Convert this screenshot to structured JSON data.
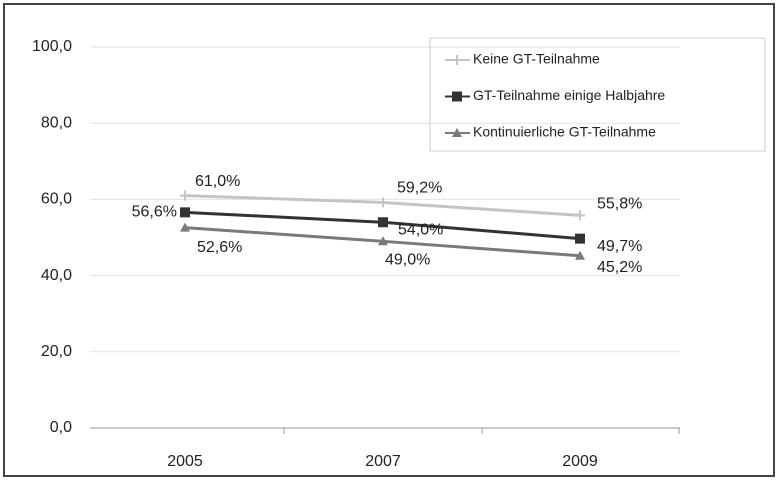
{
  "chart_data": {
    "type": "line",
    "categories": [
      "2005",
      "2007",
      "2009"
    ],
    "series": [
      {
        "name": "Keine GT-Teilnahme",
        "color": "#c4c4c4",
        "marker": "plus",
        "values": [
          61.0,
          59.2,
          55.8
        ],
        "value_labels": [
          "61,0%",
          "59,2%",
          "55,8%"
        ]
      },
      {
        "name": "GT-Teilnahme einige Halbjahre",
        "color": "#333333",
        "marker": "square",
        "values": [
          56.6,
          54.0,
          49.7
        ],
        "value_labels": [
          "56,6%",
          "54,0%",
          "49,7%"
        ]
      },
      {
        "name": "Kontinuierliche GT-Teilnahme",
        "color": "#7a7a7a",
        "marker": "triangle",
        "values": [
          52.6,
          49.0,
          45.2
        ],
        "value_labels": [
          "52,6%",
          "49,0%",
          "45,2%"
        ]
      }
    ],
    "ylim": [
      0,
      100
    ],
    "yticks": [
      {
        "value": 0,
        "label": "0,0"
      },
      {
        "value": 20,
        "label": "20,0"
      },
      {
        "value": 40,
        "label": "40,0"
      },
      {
        "value": 60,
        "label": "60,0"
      },
      {
        "value": 80,
        "label": "80,0"
      },
      {
        "value": 100,
        "label": "100,0"
      }
    ],
    "grid": true,
    "legend": "top-right"
  }
}
